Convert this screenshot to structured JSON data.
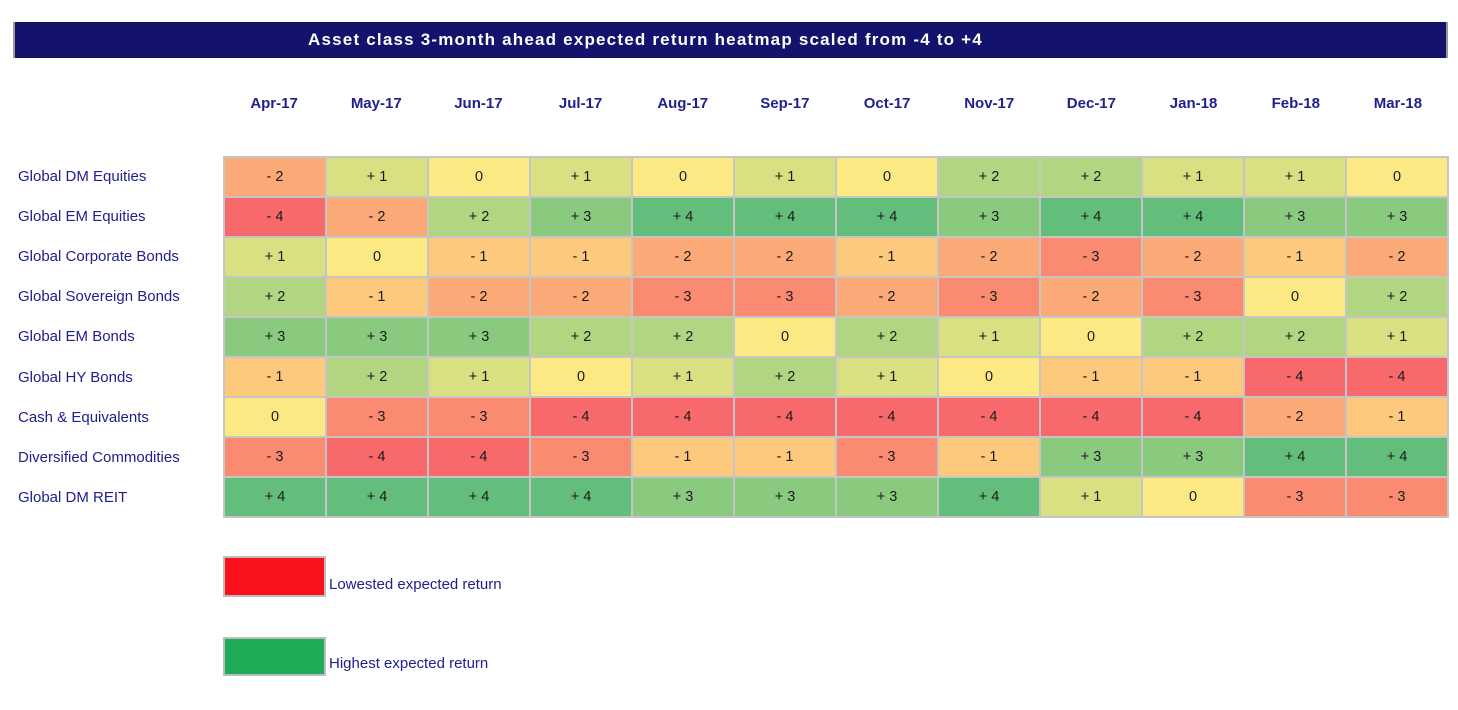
{
  "title": "Asset class 3-month ahead expected return heatmap scaled from -4 to +4",
  "colors": {
    "title_bar_bg": "#13136E",
    "title_text": "#FFFFFF",
    "label_text": "#202090",
    "grid_line": "#C5C5C5",
    "cell_text": "#1B1B1B",
    "legend_low": "#F9121E",
    "legend_high": "#1FAC57"
  },
  "chart_data": {
    "type": "heatmap",
    "title": "Asset class 3-month ahead expected return heatmap scaled from -4 to +4",
    "columns": [
      "Apr-17",
      "May-17",
      "Jun-17",
      "Jul-17",
      "Aug-17",
      "Sep-17",
      "Oct-17",
      "Nov-17",
      "Dec-17",
      "Jan-18",
      "Feb-18",
      "Mar-18"
    ],
    "rows": [
      "Global DM Equities",
      "Global EM Equities",
      "Global Corporate Bonds",
      "Global Sovereign Bonds",
      "Global EM Bonds",
      "Global HY Bonds",
      "Cash & Equivalents",
      "Diversified Commodities",
      "Global DM REIT"
    ],
    "values": [
      [
        -2,
        1,
        0,
        1,
        0,
        1,
        0,
        2,
        2,
        1,
        1,
        0
      ],
      [
        -4,
        -2,
        2,
        3,
        4,
        4,
        4,
        3,
        4,
        4,
        3,
        3
      ],
      [
        1,
        0,
        -1,
        -1,
        -2,
        -2,
        -1,
        -2,
        -3,
        -2,
        -1,
        -2
      ],
      [
        2,
        -1,
        -2,
        -2,
        -3,
        -3,
        -2,
        -3,
        -2,
        -3,
        0,
        2
      ],
      [
        3,
        3,
        3,
        2,
        2,
        0,
        2,
        1,
        0,
        2,
        2,
        1
      ],
      [
        -1,
        2,
        1,
        0,
        1,
        2,
        1,
        0,
        -1,
        -1,
        -4,
        -4
      ],
      [
        0,
        -3,
        -3,
        -4,
        -4,
        -4,
        -4,
        -4,
        -4,
        -4,
        -2,
        -1
      ],
      [
        -3,
        -4,
        -4,
        -3,
        -1,
        -1,
        -3,
        -1,
        3,
        3,
        4,
        4
      ],
      [
        4,
        4,
        4,
        4,
        3,
        3,
        3,
        4,
        1,
        0,
        -3,
        -3
      ]
    ],
    "scale_min": -4,
    "scale_max": 4,
    "color_scale": {
      "-4": "#F8696B",
      "-3": "#FA8A70",
      "-2": "#FBAA77",
      "-1": "#FDCA7D",
      "0": "#FCE983",
      "1": "#D8E082",
      "2": "#B1D580",
      "3": "#8ACA7E",
      "4": "#63BE7B"
    }
  },
  "legend": {
    "low": {
      "label": "Lowested expected return",
      "color": "#F9121E"
    },
    "high": {
      "label": "Highest expected return",
      "color": "#1FAC57"
    }
  }
}
